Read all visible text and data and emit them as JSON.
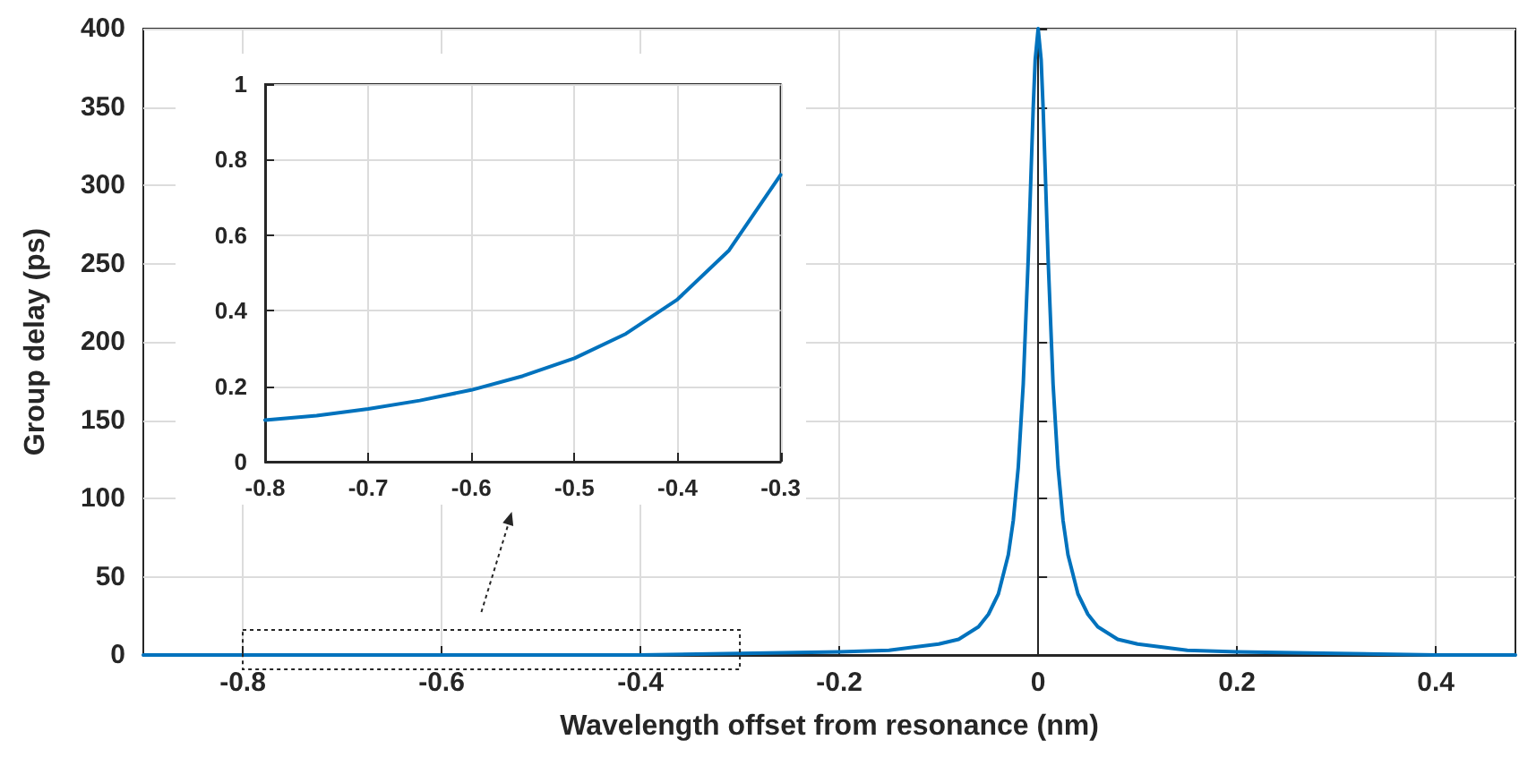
{
  "chart_data": [
    {
      "type": "line",
      "xlabel": "Wavelength offset from resonance (nm)",
      "ylabel": "Group delay (ps)",
      "x": [
        -0.9,
        -0.8,
        -0.6,
        -0.4,
        -0.3,
        -0.2,
        -0.15,
        -0.1,
        -0.08,
        -0.06,
        -0.05,
        -0.04,
        -0.03,
        -0.025,
        -0.02,
        -0.015,
        -0.01,
        -0.007,
        -0.005,
        -0.003,
        0,
        0.003,
        0.005,
        0.007,
        0.01,
        0.015,
        0.02,
        0.025,
        0.03,
        0.04,
        0.05,
        0.06,
        0.08,
        0.1,
        0.15,
        0.2,
        0.3,
        0.4,
        0.48
      ],
      "series": [
        {
          "color": "#0072bd",
          "values": [
            0,
            0,
            0,
            0,
            1,
            2,
            3,
            7,
            10,
            18,
            26,
            39,
            64,
            86,
            120,
            173,
            253,
            311,
            349,
            380,
            400,
            380,
            349,
            311,
            253,
            173,
            120,
            86,
            64,
            39,
            26,
            18,
            10,
            7,
            3,
            2,
            1,
            0,
            0
          ]
        }
      ],
      "xlim": [
        -0.9,
        0.48
      ],
      "xticks": [
        -0.8,
        -0.6,
        -0.4,
        -0.2,
        0,
        0.2,
        0.4
      ],
      "ylim": [
        0,
        400
      ],
      "yticks": [
        0,
        50,
        100,
        150,
        200,
        250,
        300,
        350,
        400
      ],
      "grid": true,
      "marker": "none",
      "line_style": "solid"
    },
    {
      "type": "line",
      "x": [
        -0.8,
        -0.75,
        -0.7,
        -0.65,
        -0.6,
        -0.55,
        -0.5,
        -0.45,
        -0.4,
        -0.35,
        -0.3
      ],
      "series": [
        {
          "color": "#0072bd",
          "values": [
            0.11,
            0.122,
            0.14,
            0.162,
            0.19,
            0.227,
            0.274,
            0.339,
            0.43,
            0.56,
            0.76
          ]
        }
      ],
      "xlim": [
        -0.8,
        -0.3
      ],
      "xticks": [
        -0.8,
        -0.7,
        -0.6,
        -0.5,
        -0.4,
        -0.3
      ],
      "ylim": [
        0,
        1
      ],
      "yticks": [
        0,
        0.2,
        0.4,
        0.6,
        0.8,
        1
      ],
      "grid": true,
      "marker": "none",
      "line_style": "solid"
    }
  ]
}
